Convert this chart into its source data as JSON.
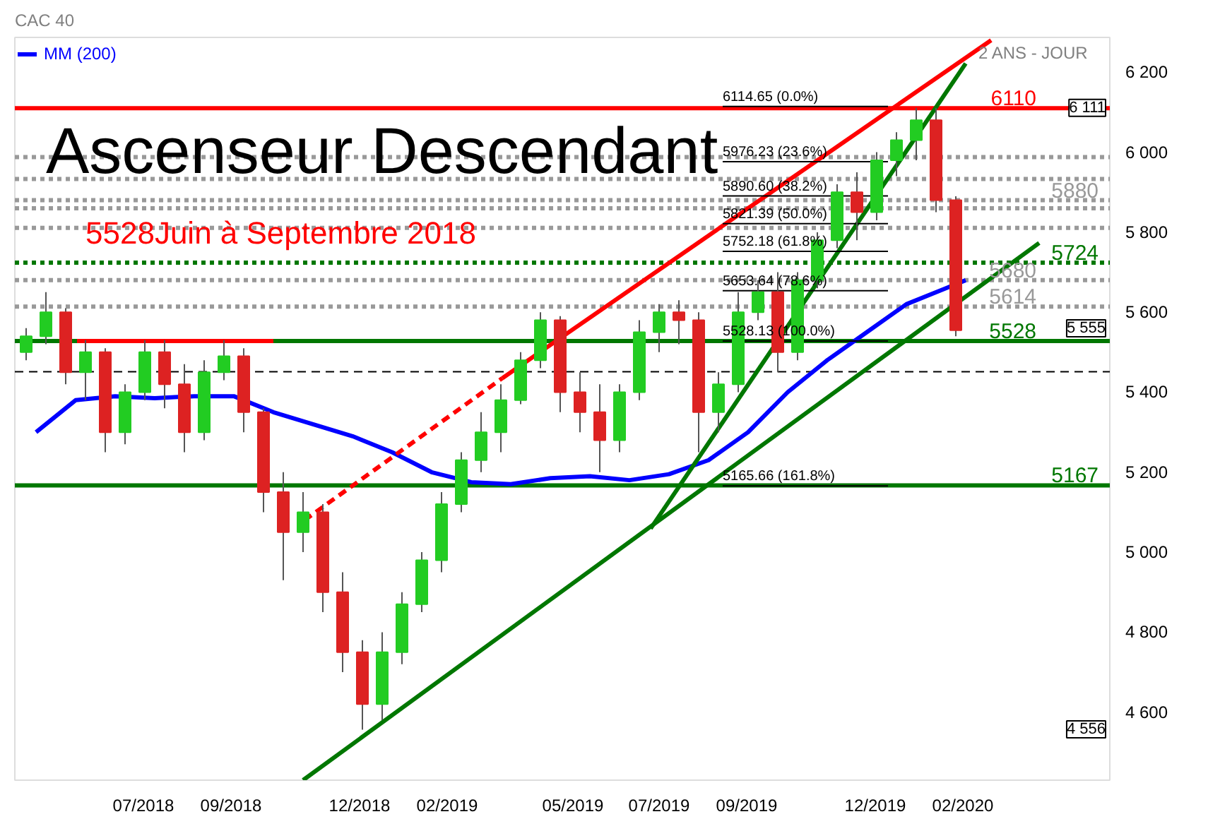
{
  "chart_data": {
    "type": "candlestick",
    "title": "CAC 40",
    "subtitle": "Ascenseur Descendant",
    "x": [
      "2018-04-09",
      "2018-04-23",
      "2018-05-07",
      "2018-05-21",
      "2018-06-04",
      "2018-06-18",
      "2018-07-02",
      "2018-07-16",
      "2018-07-30",
      "2018-08-13",
      "2018-08-27",
      "2018-09-10",
      "2018-09-24",
      "2018-10-08",
      "2018-10-22",
      "2018-11-05",
      "2018-11-19",
      "2018-12-03",
      "2018-12-17",
      "2018-12-31",
      "2019-01-14",
      "2019-01-28",
      "2019-02-11",
      "2019-02-25",
      "2019-03-11",
      "2019-03-25",
      "2019-04-08",
      "2019-04-22",
      "2019-05-06",
      "2019-05-20",
      "2019-06-03",
      "2019-06-17",
      "2019-07-01",
      "2019-07-15",
      "2019-07-29",
      "2019-08-12",
      "2019-08-26",
      "2019-09-09",
      "2019-09-23",
      "2019-10-07",
      "2019-10-21",
      "2019-11-04",
      "2019-11-18",
      "2019-12-02",
      "2019-12-16",
      "2019-12-30",
      "2020-01-13",
      "2020-01-27"
    ],
    "ohlc": [
      [
        5500,
        5560,
        5480,
        5540
      ],
      [
        5540,
        5650,
        5520,
        5600
      ],
      [
        5600,
        5610,
        5420,
        5450
      ],
      [
        5450,
        5530,
        5380,
        5500
      ],
      [
        5500,
        5510,
        5250,
        5300
      ],
      [
        5300,
        5420,
        5270,
        5400
      ],
      [
        5400,
        5530,
        5380,
        5500
      ],
      [
        5500,
        5530,
        5360,
        5420
      ],
      [
        5420,
        5470,
        5250,
        5300
      ],
      [
        5300,
        5480,
        5280,
        5450
      ],
      [
        5450,
        5530,
        5430,
        5490
      ],
      [
        5490,
        5510,
        5300,
        5350
      ],
      [
        5350,
        5360,
        5100,
        5150
      ],
      [
        5150,
        5200,
        4930,
        5050
      ],
      [
        5050,
        5150,
        5000,
        5100
      ],
      [
        5100,
        5120,
        4850,
        4900
      ],
      [
        4900,
        4950,
        4700,
        4750
      ],
      [
        4750,
        4780,
        4556,
        4620
      ],
      [
        4620,
        4800,
        4580,
        4750
      ],
      [
        4750,
        4900,
        4720,
        4870
      ],
      [
        4870,
        5000,
        4850,
        4980
      ],
      [
        4980,
        5150,
        4950,
        5120
      ],
      [
        5120,
        5250,
        5100,
        5230
      ],
      [
        5230,
        5350,
        5200,
        5300
      ],
      [
        5300,
        5420,
        5250,
        5380
      ],
      [
        5380,
        5500,
        5370,
        5480
      ],
      [
        5480,
        5600,
        5460,
        5580
      ],
      [
        5580,
        5590,
        5350,
        5400
      ],
      [
        5400,
        5450,
        5300,
        5350
      ],
      [
        5350,
        5420,
        5200,
        5280
      ],
      [
        5280,
        5420,
        5250,
        5400
      ],
      [
        5400,
        5580,
        5380,
        5550
      ],
      [
        5550,
        5620,
        5500,
        5600
      ],
      [
        5600,
        5630,
        5520,
        5580
      ],
      [
        5580,
        5600,
        5250,
        5350
      ],
      [
        5350,
        5450,
        5300,
        5420
      ],
      [
        5420,
        5650,
        5400,
        5600
      ],
      [
        5600,
        5680,
        5580,
        5650
      ],
      [
        5650,
        5700,
        5450,
        5500
      ],
      [
        5500,
        5700,
        5480,
        5680
      ],
      [
        5680,
        5800,
        5660,
        5780
      ],
      [
        5780,
        5920,
        5760,
        5900
      ],
      [
        5900,
        5950,
        5780,
        5850
      ],
      [
        5850,
        6000,
        5830,
        5980
      ],
      [
        5980,
        6050,
        5940,
        6030
      ],
      [
        6030,
        6111,
        5980,
        6080
      ],
      [
        6080,
        6111,
        5850,
        5880
      ],
      [
        5880,
        5890,
        5540,
        5555
      ]
    ],
    "colors": [
      "#22cc22",
      "#22cc22",
      "#dd2222",
      "#22cc22",
      "#dd2222",
      "#22cc22",
      "#22cc22",
      "#dd2222",
      "#dd2222",
      "#22cc22",
      "#22cc22",
      "#dd2222",
      "#dd2222",
      "#dd2222",
      "#22cc22",
      "#dd2222",
      "#dd2222",
      "#dd2222",
      "#22cc22",
      "#22cc22",
      "#22cc22",
      "#22cc22",
      "#22cc22",
      "#22cc22",
      "#22cc22",
      "#22cc22",
      "#22cc22",
      "#dd2222",
      "#dd2222",
      "#dd2222",
      "#22cc22",
      "#22cc22",
      "#22cc22",
      "#dd2222",
      "#dd2222",
      "#22cc22",
      "#22cc22",
      "#22cc22",
      "#dd2222",
      "#22cc22",
      "#22cc22",
      "#22cc22",
      "#dd2222",
      "#22cc22",
      "#22cc22",
      "#22cc22",
      "#dd2222",
      "#dd2222"
    ],
    "series": [
      {
        "type": "line",
        "name": "MM (200)",
        "color": "#0000ff",
        "x": [
          "2018-04-16",
          "2018-05-14",
          "2018-06-11",
          "2018-07-09",
          "2018-08-06",
          "2018-09-03",
          "2018-10-01",
          "2018-10-29",
          "2018-11-26",
          "2018-12-24",
          "2019-01-21",
          "2019-02-18",
          "2019-03-18",
          "2019-04-15",
          "2019-05-13",
          "2019-06-10",
          "2019-07-08",
          "2019-08-05",
          "2019-09-02",
          "2019-09-30",
          "2019-10-28",
          "2019-11-25",
          "2019-12-23",
          "2020-01-20",
          "2020-02-03"
        ],
        "values": [
          5300,
          5380,
          5390,
          5385,
          5390,
          5390,
          5350,
          5320,
          5290,
          5250,
          5200,
          5175,
          5170,
          5185,
          5190,
          5180,
          5195,
          5230,
          5300,
          5400,
          5480,
          5550,
          5620,
          5660,
          5680
        ]
      },
      {
        "type": "line",
        "color": "#ff0000",
        "x": [
          "2018-05-15",
          "2018-10-01"
        ],
        "values": [
          5528,
          5528
        ]
      },
      {
        "type": "line",
        "color": "#ff0000",
        "x": [
          "2019-03-12",
          "2020-02-21"
        ],
        "values": [
          5435,
          6280
        ]
      },
      {
        "type": "line",
        "color": "#ff0000",
        "line_style": "dashed",
        "x": [
          "2018-10-23",
          "2019-03-12"
        ],
        "values": [
          5080,
          5435
        ]
      },
      {
        "type": "line",
        "color": "#007700",
        "x": [
          "2018-10-22",
          "2020-03-26"
        ],
        "values": [
          4430,
          5773
        ]
      },
      {
        "type": "line",
        "color": "#007700",
        "x": [
          "2019-06-25",
          "2020-02-03"
        ],
        "values": [
          5059,
          6222
        ]
      },
      {
        "type": "line",
        "color": "#000000",
        "x": [
          "2019-08-15",
          "2019-12-10"
        ],
        "values": [
          6114.65,
          6114.65
        ]
      },
      {
        "type": "line",
        "color": "#000000",
        "x": [
          "2019-08-15",
          "2019-12-10"
        ],
        "values": [
          5976.23,
          5976.23
        ]
      },
      {
        "type": "line",
        "color": "#000000",
        "x": [
          "2019-08-15",
          "2019-12-10"
        ],
        "values": [
          5890.6,
          5890.6
        ]
      },
      {
        "type": "line",
        "color": "#000000",
        "x": [
          "2019-08-15",
          "2019-12-10"
        ],
        "values": [
          5821.39,
          5821.39
        ]
      },
      {
        "type": "line",
        "color": "#000000",
        "x": [
          "2019-08-15",
          "2019-12-10"
        ],
        "values": [
          5752.18,
          5752.18
        ]
      },
      {
        "type": "line",
        "color": "#000000",
        "x": [
          "2019-08-15",
          "2019-12-10"
        ],
        "values": [
          5653.64,
          5653.64
        ]
      },
      {
        "type": "line",
        "color": "#000000",
        "x": [
          "2019-08-15",
          "2019-12-10"
        ],
        "values": [
          5528.13,
          5528.13
        ]
      },
      {
        "type": "line",
        "color": "#000000",
        "x": [
          "2019-08-15",
          "2019-12-10"
        ],
        "values": [
          5165.66,
          5165.66
        ]
      }
    ],
    "ref_lines": [
      {
        "axis": "y",
        "value": 6110,
        "label": "6110",
        "color": "#ff0000",
        "line_style": "solid"
      },
      {
        "axis": "y",
        "value": 5988,
        "color": "#999999",
        "line_style": "dotted"
      },
      {
        "axis": "y",
        "value": 5933,
        "color": "#999999",
        "line_style": "dotted"
      },
      {
        "axis": "y",
        "value": 5880,
        "label": "5880",
        "color": "#999999",
        "line_style": "dotted"
      },
      {
        "axis": "y",
        "value": 5860,
        "color": "#999999",
        "line_style": "dotted"
      },
      {
        "axis": "y",
        "value": 5811,
        "color": "#999999",
        "line_style": "dotted"
      },
      {
        "axis": "y",
        "value": 5724,
        "label": "5724",
        "color": "#007700",
        "line_style": "dotted"
      },
      {
        "axis": "y",
        "value": 5680,
        "label": "5680",
        "color": "#999999",
        "line_style": "dotted"
      },
      {
        "axis": "y",
        "value": 5614,
        "label": "5614",
        "color": "#999999",
        "line_style": "dotted"
      },
      {
        "axis": "y",
        "value": 5528,
        "label": "5528",
        "color": "#007700",
        "line_style": "solid"
      },
      {
        "axis": "y",
        "value": 5451,
        "color": "#000000",
        "line_style": "dashed"
      },
      {
        "axis": "y",
        "value": 5167,
        "label": "5167",
        "color": "#007700",
        "line_style": "solid"
      }
    ],
    "annotations": [
      "5528Juin à Septembre 2018",
      "2 ANS - JOUR",
      {
        "text": "6114.65  (0.0%)",
        "x": "2019-08-15",
        "y": 6114.65
      },
      {
        "text": "5976.23  (23.6%)",
        "x": "2019-08-15",
        "y": 5976.23
      },
      {
        "text": "5890.60  (38.2%)",
        "x": "2019-08-15",
        "y": 5890.6
      },
      {
        "text": "5821.39  (50.0%)",
        "x": "2019-08-15",
        "y": 5821.39
      },
      {
        "text": "5752.18  (61.8%)",
        "x": "2019-08-15",
        "y": 5752.18
      },
      {
        "text": "5653.64  (78.6%)",
        "x": "2019-08-15",
        "y": 5653.64
      },
      {
        "text": "5528.13  (100.0%)",
        "x": "2019-08-15",
        "y": 5528.13
      },
      {
        "text": "5165.66  (161.8%)",
        "x": "2019-08-15",
        "y": 5165.66
      },
      {
        "text": "6 111",
        "x": "2020-05-15",
        "y": 6111
      },
      "5 555",
      "4 556"
    ],
    "xlim": [
      "2018-04-01",
      "2020-05-15"
    ],
    "xticks": [
      {
        "value": "2018-07-01",
        "label": "07/2018"
      },
      {
        "value": "2018-09-01",
        "label": "09/2018"
      },
      {
        "value": "2018-12-01",
        "label": "12/2018"
      },
      {
        "value": "2019-02-01",
        "label": "02/2019"
      },
      {
        "value": "2019-05-01",
        "label": "05/2019"
      },
      {
        "value": "2019-07-01",
        "label": "07/2019"
      },
      {
        "value": "2019-09-01",
        "label": "09/2019"
      },
      {
        "value": "2019-12-01",
        "label": "12/2019"
      },
      {
        "value": "2020-02-01",
        "label": "02/2020"
      }
    ],
    "ylim": [
      4430,
      6287
    ],
    "yticks": [
      {
        "value": 4600,
        "label": "4 600"
      },
      {
        "value": 4800,
        "label": "4 800"
      },
      {
        "value": 5000,
        "label": "5 000"
      },
      {
        "value": 5200,
        "label": "5 200"
      },
      {
        "value": 5400,
        "label": "5 400"
      },
      {
        "value": 5600,
        "label": "5 600"
      },
      {
        "value": 5800,
        "label": "5 800"
      },
      {
        "value": 6000,
        "label": "6 000"
      },
      {
        "value": 6200,
        "label": "6 200"
      }
    ],
    "grid": false,
    "legend": "top left"
  }
}
